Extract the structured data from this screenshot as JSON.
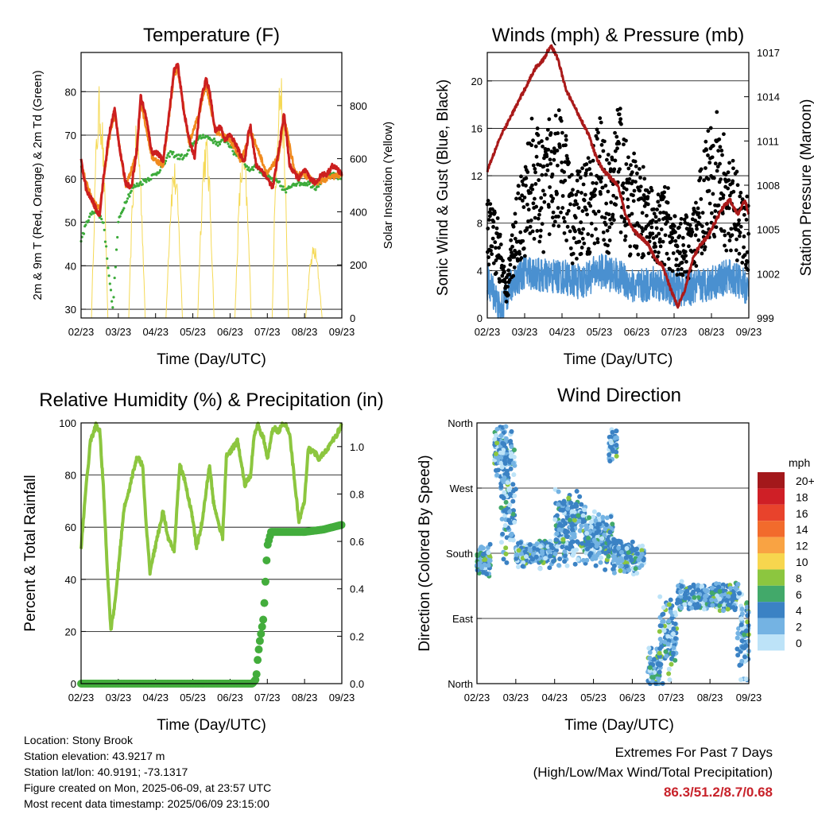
{
  "chart_data": [
    {
      "type": "line",
      "title": "Temperature (F)",
      "xlabel": "Time (Day/UTC)",
      "ylabel": "2m & 9m T (Red, Orange) & 2m Td (Green)",
      "y2label": "Solar Insolation (Yellow)",
      "x_ticks": [
        "02/23",
        "03/23",
        "04/23",
        "05/23",
        "06/23",
        "07/23",
        "08/23",
        "09/23"
      ],
      "ylim": [
        28,
        89
      ],
      "yticks": [
        30,
        40,
        50,
        60,
        70,
        80
      ],
      "y2lim": [
        0,
        1000
      ],
      "y2ticks": [
        0,
        200,
        400,
        600,
        800
      ],
      "grid": true,
      "colors": {
        "t2m": "#cc1f1f",
        "t9m": "#f08a1d",
        "td": "#3cab3a",
        "solar": "#f5d955"
      },
      "series": [
        {
          "key": "t2m",
          "x": [
            0,
            0.15,
            0.3,
            0.45,
            0.5,
            0.6,
            0.75,
            0.9,
            1.05,
            1.2,
            1.35,
            1.5,
            1.6,
            1.75,
            1.9,
            2.05,
            2.2,
            2.35,
            2.5,
            2.6,
            2.75,
            2.9,
            3.05,
            3.2,
            3.35,
            3.45,
            3.6,
            3.75,
            3.85,
            4.0,
            4.15,
            4.3,
            4.4,
            4.5,
            4.55,
            4.7,
            4.85,
            5.0,
            5.15,
            5.3,
            5.45,
            5.6,
            5.75,
            5.85,
            6.0,
            6.15,
            6.3,
            6.45,
            6.6,
            6.75,
            6.9,
            7.0
          ],
          "values": [
            64,
            57,
            55,
            52,
            52,
            60,
            70,
            76,
            66,
            59,
            58,
            67,
            79,
            74,
            66,
            66,
            64,
            74,
            85,
            86,
            76,
            69,
            65,
            77,
            83,
            80,
            71,
            72,
            69,
            70,
            68,
            65,
            64,
            71,
            72,
            63,
            62,
            60,
            58,
            66,
            75,
            63,
            61,
            60,
            62,
            60,
            59,
            61,
            61,
            63,
            62,
            61
          ]
        },
        {
          "key": "t9m",
          "x": [
            0,
            0.3,
            0.5,
            0.75,
            0.9,
            1.2,
            1.5,
            1.6,
            1.9,
            2.2,
            2.5,
            2.6,
            2.9,
            3.2,
            3.35,
            3.6,
            4.0,
            4.3,
            4.55,
            5.0,
            5.3,
            5.45,
            5.75,
            6.0,
            6.3,
            6.6,
            7.0
          ],
          "values": [
            63,
            55,
            53,
            69,
            75,
            58,
            66,
            78,
            65,
            63,
            84,
            85,
            68,
            76,
            82,
            71,
            69,
            64,
            71,
            61,
            65,
            74,
            61,
            61,
            59,
            60,
            61
          ]
        },
        {
          "key": "td",
          "x": [
            0,
            0.2,
            0.4,
            0.6,
            0.75,
            0.85,
            1.0,
            1.2,
            1.4,
            1.6,
            1.8,
            2.0,
            2.2,
            2.4,
            2.6,
            2.8,
            3.0,
            3.15,
            3.3,
            3.5,
            3.7,
            3.9,
            4.1,
            4.3,
            4.5,
            4.7,
            4.9,
            5.1,
            5.3,
            5.5,
            5.7,
            5.9,
            6.1,
            6.3,
            6.5,
            6.7,
            7.0
          ],
          "values": [
            46,
            51,
            53,
            50,
            38,
            30,
            50,
            55,
            58,
            59,
            60,
            61,
            63,
            66,
            65,
            65,
            68,
            69,
            70,
            69,
            68,
            69,
            66,
            65,
            62,
            63,
            61,
            60,
            59,
            57,
            59,
            59,
            59,
            58,
            60,
            61,
            60
          ]
        },
        {
          "key": "solar",
          "peaks_x": [
            0.5,
            1.5,
            2.5,
            3.35,
            4.35,
            5.35,
            6.25
          ],
          "peaks": [
            880,
            740,
            600,
            700,
            650,
            950,
            280
          ]
        }
      ]
    },
    {
      "type": "line",
      "title": "Winds (mph) & Pressure (mb)",
      "xlabel": "Time (Day/UTC)",
      "ylabel": "Sonic Wind & Gust (Blue, Black)",
      "y2label": "Station Pressure (Maroon)",
      "x_ticks": [
        "02/23",
        "03/23",
        "04/23",
        "05/23",
        "06/23",
        "07/23",
        "08/23",
        "09/23"
      ],
      "ylim": [
        0,
        22.4
      ],
      "yticks": [
        0,
        4,
        8,
        12,
        16,
        20
      ],
      "y2ticks": [
        999,
        1002,
        1005,
        1008,
        1011,
        1014,
        1017
      ],
      "y2lim": [
        999,
        1017
      ],
      "colors": {
        "wind": "#4a90d0",
        "gust": "#000000",
        "pressure": "#aa1a1a"
      },
      "series": [
        {
          "key": "pressure",
          "x": [
            0,
            0.3,
            0.6,
            0.9,
            1.1,
            1.3,
            1.5,
            1.7,
            1.9,
            2.1,
            2.3,
            2.5,
            2.7,
            2.9,
            3.1,
            3.3,
            3.5,
            3.7,
            3.9,
            4.1,
            4.3,
            4.5,
            4.7,
            4.9,
            5.1,
            5.3,
            5.5,
            5.7,
            5.9,
            6.1,
            6.3,
            6.5,
            6.7,
            6.9,
            7.0
          ],
          "values": [
            1009,
            1011,
            1012.5,
            1014,
            1015,
            1016,
            1016.5,
            1017.5,
            1016.5,
            1014.5,
            1013.5,
            1012.5,
            1011.5,
            1010,
            1009,
            1008.5,
            1008,
            1006,
            1005,
            1004.5,
            1004,
            1003,
            1002.5,
            1001,
            999.8,
            1001,
            1003,
            1004,
            1004.5,
            1005.5,
            1006.5,
            1007,
            1006,
            1007,
            1006
          ]
        },
        {
          "key": "wind",
          "level_x": [
            0,
            0.2,
            0.35,
            0.5,
            0.7,
            1.0,
            1.5,
            2.0,
            2.5,
            3.0,
            3.5,
            4.0,
            4.5,
            5.0,
            5.5,
            6.0,
            6.5,
            7.0
          ],
          "level": [
            3,
            2,
            0.3,
            2,
            3,
            4,
            3.5,
            3.5,
            3,
            4,
            3.5,
            2.5,
            3,
            2.5,
            2.5,
            3,
            3.5,
            2.5
          ]
        },
        {
          "key": "gust",
          "level_x": [
            0,
            0.3,
            0.5,
            0.8,
            1.0,
            1.2,
            1.5,
            1.8,
            2.0,
            2.3,
            2.5,
            2.8,
            3.0,
            3.3,
            3.5,
            3.8,
            4.0,
            4.3,
            4.5,
            4.8,
            5.0,
            5.5,
            5.8,
            6.0,
            6.3,
            6.6,
            7.0
          ],
          "level": [
            7,
            6,
            2,
            8,
            9,
            12,
            10,
            14,
            12,
            8,
            9,
            10,
            12,
            9,
            14,
            9,
            10,
            8,
            7,
            8,
            6,
            6,
            10,
            13,
            11,
            9,
            7
          ]
        }
      ]
    },
    {
      "type": "line",
      "title": "Relative Humidity (%) & Precipitation (in)",
      "xlabel": "Time (Day/UTC)",
      "ylabel": "Percent & Total Rainfall",
      "x_ticks": [
        "02/23",
        "03/23",
        "04/23",
        "05/23",
        "06/23",
        "07/23",
        "08/23",
        "09/23"
      ],
      "ylim": [
        0,
        100
      ],
      "yticks": [
        0,
        20,
        40,
        60,
        80,
        100
      ],
      "y2lim": [
        0,
        1.1
      ],
      "y2ticks": [
        "0.0",
        "0.2",
        "0.4",
        "0.6",
        "0.8",
        "1.0"
      ],
      "colors": {
        "rh": "#8cc63f",
        "precip": "#43ad3c"
      },
      "series": [
        {
          "key": "rh",
          "x": [
            0,
            0.1,
            0.25,
            0.4,
            0.5,
            0.6,
            0.7,
            0.8,
            0.9,
            1.0,
            1.15,
            1.3,
            1.5,
            1.65,
            1.75,
            1.85,
            2.0,
            2.2,
            2.35,
            2.5,
            2.65,
            2.8,
            3.0,
            3.1,
            3.25,
            3.45,
            3.55,
            3.7,
            3.8,
            3.9,
            4.05,
            4.2,
            4.4,
            4.55,
            4.65,
            4.75,
            4.9,
            5.0,
            5.15,
            5.3,
            5.4,
            5.5,
            5.6,
            5.7,
            5.85,
            6.0,
            6.1,
            6.25,
            6.4,
            6.6,
            6.8,
            7.0
          ],
          "values": [
            51,
            70,
            93,
            99,
            97,
            75,
            45,
            21,
            30,
            44,
            67,
            75,
            87,
            84,
            60,
            43,
            53,
            66,
            55,
            51,
            84,
            77,
            63,
            52,
            62,
            84,
            70,
            61,
            56,
            87,
            90,
            93,
            76,
            80,
            96,
            99,
            94,
            86,
            98,
            97,
            99,
            99,
            96,
            82,
            62,
            70,
            90,
            89,
            86,
            90,
            94,
            99
          ]
        },
        {
          "key": "precip",
          "x": [
            0,
            4.6,
            4.7,
            4.75,
            4.8,
            4.9,
            5.0,
            5.1,
            5.5,
            6.0,
            6.5,
            7.0
          ],
          "values": [
            0,
            0,
            0.02,
            0.12,
            0.18,
            0.28,
            0.58,
            0.64,
            0.64,
            0.64,
            0.65,
            0.67
          ]
        }
      ]
    },
    {
      "type": "scatter",
      "title": "Wind Direction",
      "xlabel": "Time (Day/UTC)",
      "ylabel": "Direction (Colored By Speed)",
      "x_ticks": [
        "02/23",
        "03/23",
        "04/23",
        "05/23",
        "06/23",
        "07/23",
        "08/23",
        "09/23"
      ],
      "yticks": [
        "North",
        "East",
        "South",
        "West",
        "North"
      ],
      "ylim": [
        0,
        360
      ],
      "colorbar": {
        "title": "mph",
        "labels": [
          "20+",
          "18",
          "16",
          "14",
          "12",
          "10",
          "8",
          "6",
          "4",
          "2",
          "0"
        ],
        "colors": [
          "#a3181b",
          "#cf1f26",
          "#e8432c",
          "#f26b2c",
          "#f9a343",
          "#f7d64e",
          "#8cc63f",
          "#42a96a",
          "#3b82c4",
          "#74b3e3",
          "#bde3f8"
        ]
      },
      "clusters": [
        {
          "x0": 0,
          "x1": 0.35,
          "dir": 170,
          "spread": 15
        },
        {
          "x0": 0.45,
          "x1": 0.9,
          "dir": 320,
          "spread": 25
        },
        {
          "x0": 0.6,
          "x1": 1.0,
          "dir": 250,
          "spread": 50
        },
        {
          "x0": 1.0,
          "x1": 2.0,
          "dir": 180,
          "spread": 12
        },
        {
          "x0": 2.0,
          "x1": 2.8,
          "dir": 215,
          "spread": 35
        },
        {
          "x0": 2.8,
          "x1": 3.5,
          "dir": 200,
          "spread": 25
        },
        {
          "x0": 3.4,
          "x1": 3.6,
          "dir": 330,
          "spread": 15
        },
        {
          "x0": 3.5,
          "x1": 4.3,
          "dir": 175,
          "spread": 15
        },
        {
          "x0": 4.4,
          "x1": 4.7,
          "dir": 20,
          "spread": 20
        },
        {
          "x0": 4.7,
          "x1": 5.15,
          "dir": 60,
          "spread": 35
        },
        {
          "x0": 5.15,
          "x1": 6.7,
          "dir": 120,
          "spread": 12
        },
        {
          "x0": 6.7,
          "x1": 7.0,
          "dir": 70,
          "spread": 45
        }
      ]
    }
  ],
  "info": {
    "location": "Location: Stony Brook",
    "elevation": "Station elevation: 43.9217 m",
    "latlon": "Station lat/lon: 40.9191; -73.1317",
    "created": "Figure created on Mon, 2025-06-09, at 23:57 UTC",
    "timestamp": "Most recent data timestamp: 2025/06/09 23:15:00"
  },
  "extremes": {
    "title": "Extremes For Past 7 Days",
    "subtitle": "(High/Low/Max Wind/Total Precipitation)",
    "values": "86.3/51.2/8.7/0.68"
  }
}
